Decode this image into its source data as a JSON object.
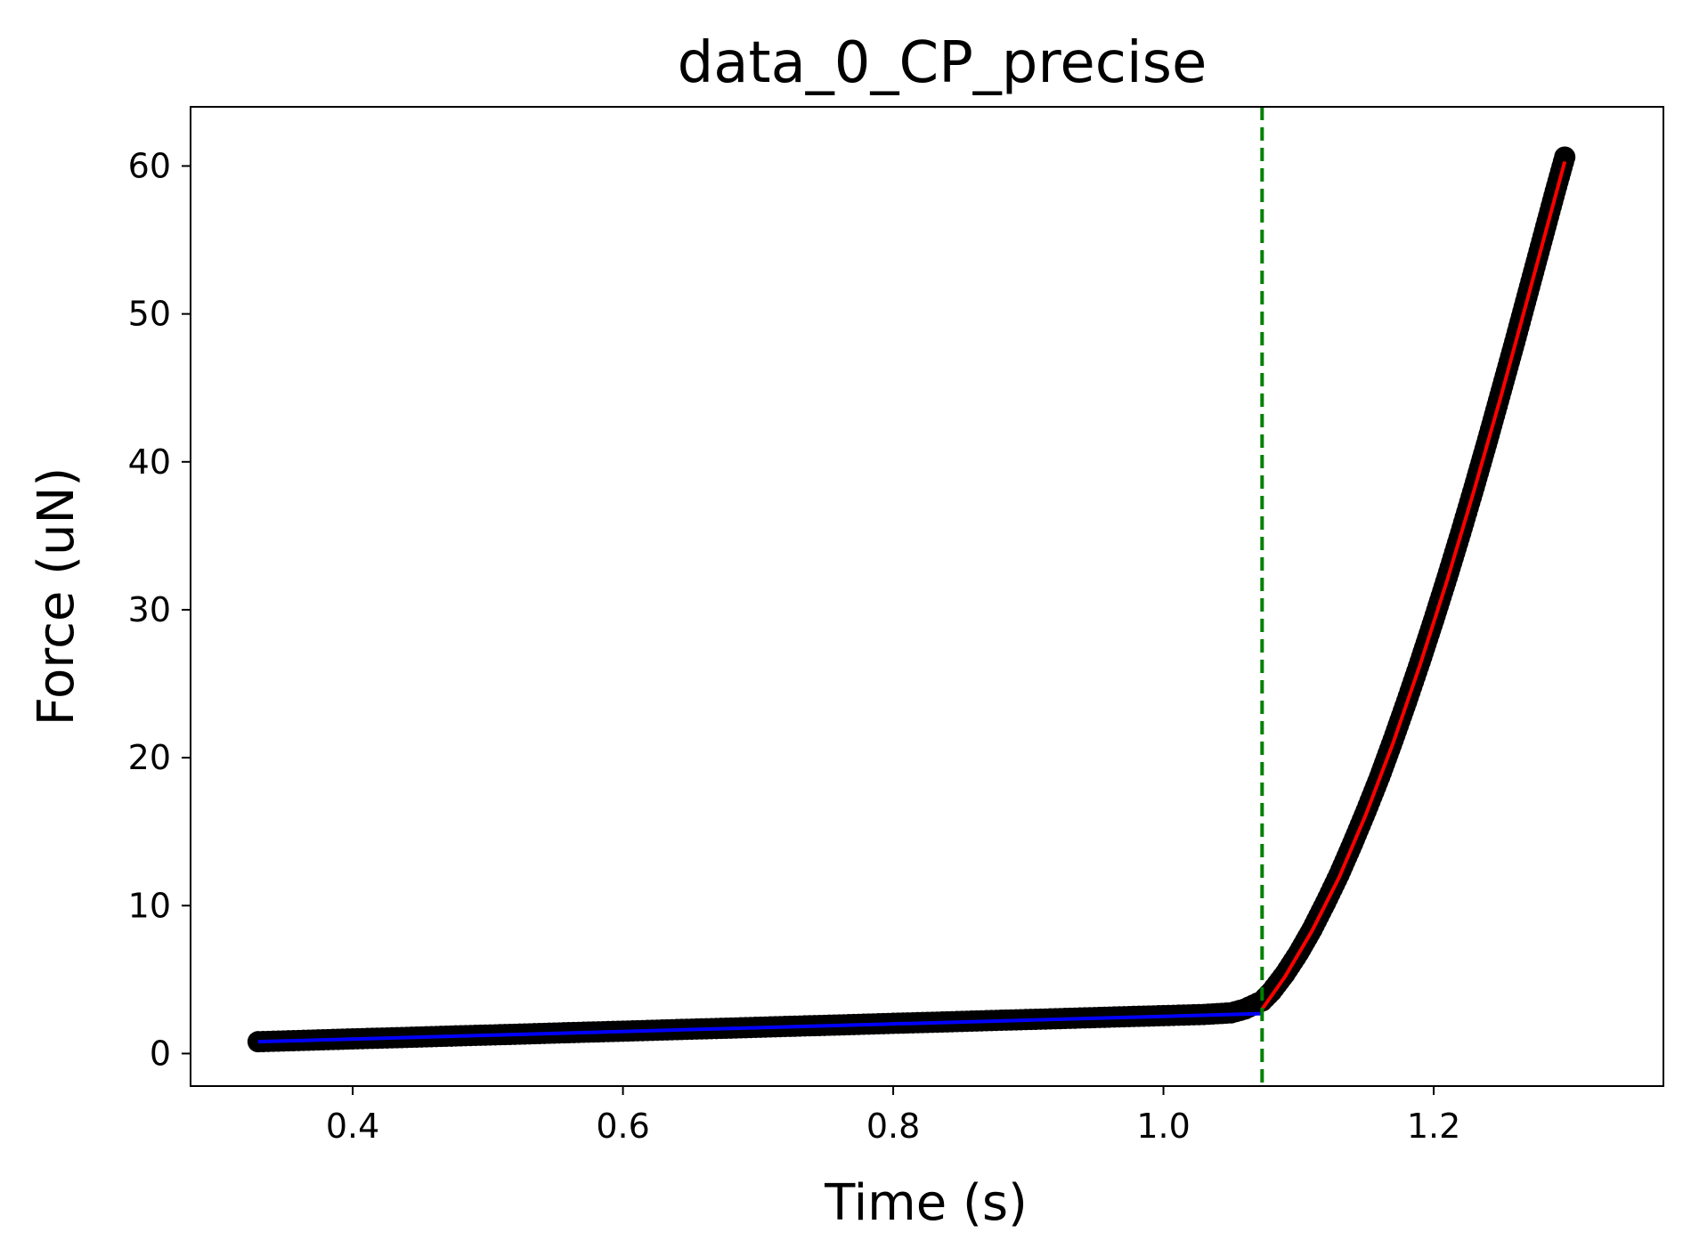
{
  "chart_data": {
    "type": "scatter",
    "title": "data_0_CP_precise",
    "xlabel": "Time (s)",
    "ylabel": "Force (uN)",
    "xlim": [
      0.28,
      1.37
    ],
    "ylim": [
      -2.2,
      64.0
    ],
    "xticks": [
      {
        "value": 0.4,
        "label": "0.4"
      },
      {
        "value": 0.6,
        "label": "0.6"
      },
      {
        "value": 0.8,
        "label": "0.8"
      },
      {
        "value": 1.0,
        "label": "1.0"
      },
      {
        "value": 1.2,
        "label": "1.2"
      }
    ],
    "yticks": [
      {
        "value": 0,
        "label": "0"
      },
      {
        "value": 10,
        "label": "10"
      },
      {
        "value": 20,
        "label": "20"
      },
      {
        "value": 30,
        "label": "30"
      },
      {
        "value": 40,
        "label": "40"
      },
      {
        "value": 50,
        "label": "50"
      },
      {
        "value": 60,
        "label": "60"
      }
    ],
    "grid": false,
    "contact_point_time": 1.073,
    "series": [
      {
        "kind": "scatter",
        "color": "#000000",
        "points": [
          [
            0.33,
            0.8
          ],
          [
            0.36,
            0.88
          ],
          [
            0.4,
            0.99
          ],
          [
            0.44,
            1.09
          ],
          [
            0.48,
            1.2
          ],
          [
            0.52,
            1.3
          ],
          [
            0.56,
            1.41
          ],
          [
            0.6,
            1.51
          ],
          [
            0.64,
            1.62
          ],
          [
            0.68,
            1.72
          ],
          [
            0.72,
            1.83
          ],
          [
            0.76,
            1.93
          ],
          [
            0.8,
            2.04
          ],
          [
            0.84,
            2.14
          ],
          [
            0.88,
            2.25
          ],
          [
            0.92,
            2.35
          ],
          [
            0.96,
            2.46
          ],
          [
            1.0,
            2.56
          ],
          [
            1.03,
            2.64
          ],
          [
            1.05,
            2.75
          ],
          [
            1.06,
            3.0
          ],
          [
            1.073,
            3.55
          ],
          [
            1.08,
            4.2
          ],
          [
            1.09,
            5.4
          ],
          [
            1.1,
            6.8
          ],
          [
            1.11,
            8.4
          ],
          [
            1.12,
            10.2
          ],
          [
            1.13,
            12.1
          ],
          [
            1.14,
            14.2
          ],
          [
            1.15,
            16.4
          ],
          [
            1.16,
            18.7
          ],
          [
            1.17,
            21.2
          ],
          [
            1.18,
            23.8
          ],
          [
            1.19,
            26.5
          ],
          [
            1.2,
            29.3
          ],
          [
            1.21,
            32.2
          ],
          [
            1.22,
            35.2
          ],
          [
            1.23,
            38.3
          ],
          [
            1.24,
            41.5
          ],
          [
            1.25,
            44.8
          ],
          [
            1.26,
            48.1
          ],
          [
            1.27,
            51.5
          ],
          [
            1.28,
            54.9
          ],
          [
            1.29,
            58.3
          ],
          [
            1.297,
            60.6
          ]
        ]
      },
      {
        "kind": "line",
        "name": "",
        "color": "#0000ff",
        "points": [
          [
            0.33,
            0.8
          ],
          [
            1.073,
            2.7
          ]
        ]
      },
      {
        "kind": "line",
        "name": "",
        "color": "#ff0000",
        "points": [
          [
            1.073,
            3.0
          ],
          [
            1.09,
            5.2
          ],
          [
            1.11,
            8.3
          ],
          [
            1.13,
            11.9
          ],
          [
            1.15,
            16.2
          ],
          [
            1.17,
            21.0
          ],
          [
            1.19,
            26.3
          ],
          [
            1.21,
            32.0
          ],
          [
            1.23,
            38.1
          ],
          [
            1.25,
            44.5
          ],
          [
            1.27,
            51.2
          ],
          [
            1.297,
            60.3
          ]
        ]
      }
    ]
  }
}
